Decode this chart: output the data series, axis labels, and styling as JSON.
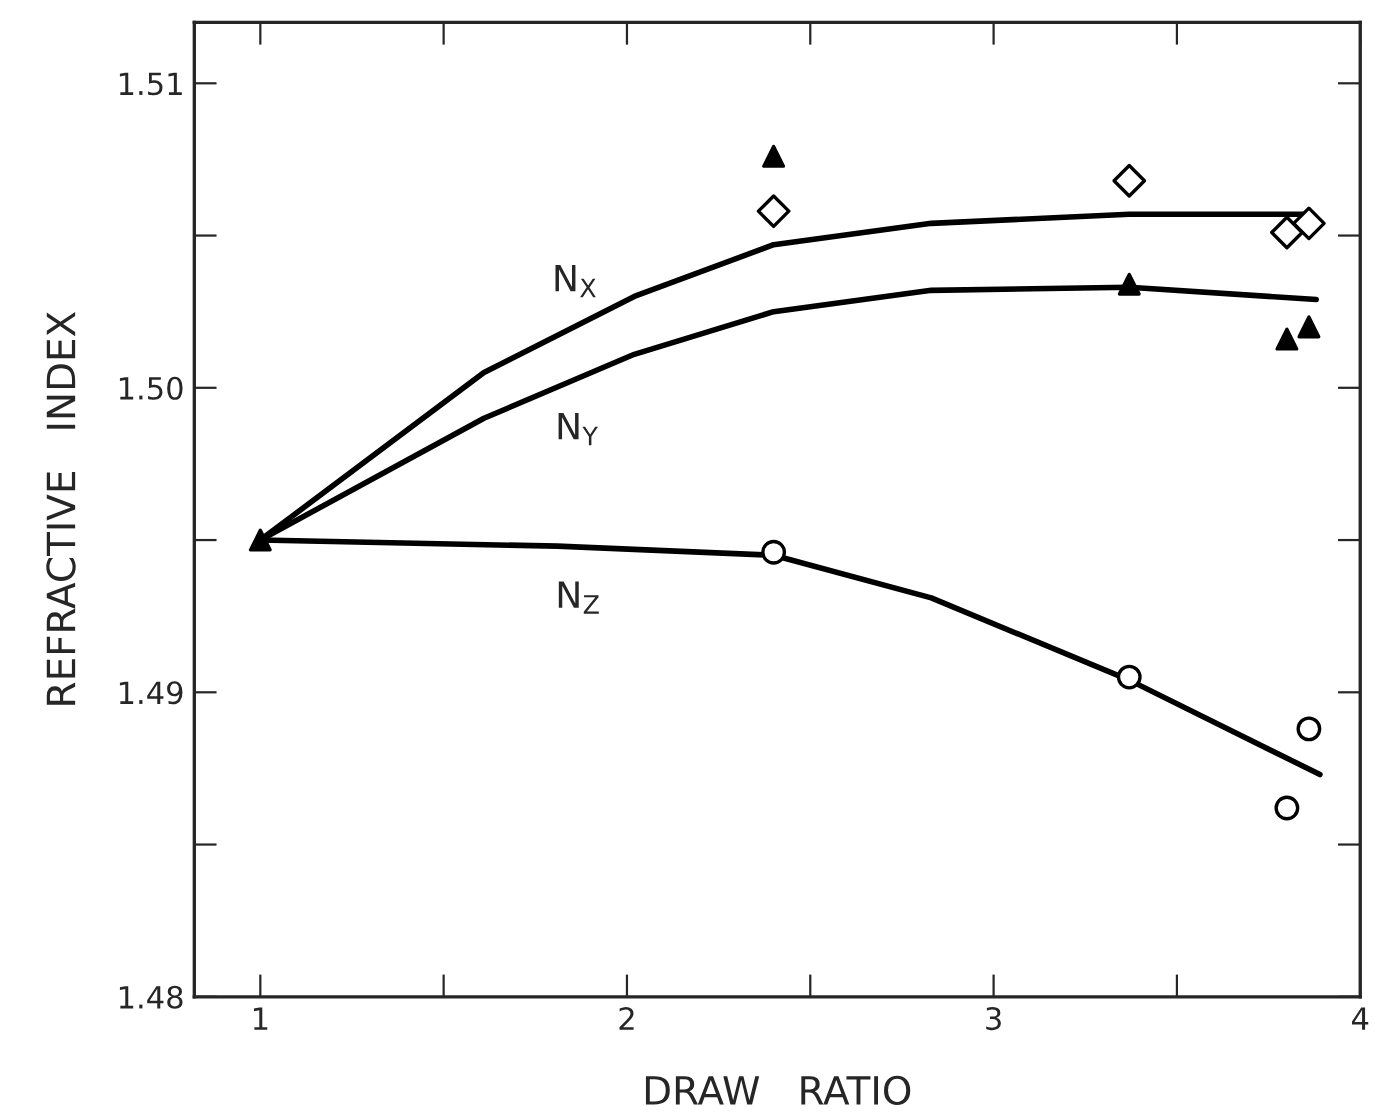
{
  "chart_data": {
    "type": "line",
    "xlabel": "DRAW   RATIO",
    "ylabel": "REFRACTIVE   INDEX",
    "xlim": [
      0.82,
      4.0
    ],
    "ylim": [
      1.48,
      1.512
    ],
    "xticks": [
      1,
      {
        "value": 1.5,
        "label": null
      },
      2,
      {
        "value": 2.5,
        "label": null
      },
      3,
      {
        "value": 3.5,
        "label": null
      },
      4
    ],
    "yticks": [
      {
        "value": 1.48,
        "label": "1.48"
      },
      {
        "value": 1.485,
        "label": null
      },
      {
        "value": 1.49,
        "label": "1.49"
      },
      {
        "value": 1.495,
        "label": null
      },
      {
        "value": 1.5,
        "label": "1.50"
      },
      {
        "value": 1.505,
        "label": null
      },
      {
        "value": 1.51,
        "label": "1.51"
      }
    ],
    "grid": false,
    "legend": false,
    "series": [
      {
        "name": "N$_{X}$",
        "color": "#000000",
        "marker": "none",
        "line_style": "solid",
        "x": [
          1,
          1.61,
          2.02,
          2.4,
          2.83,
          3.37,
          3.86
        ],
        "values": [
          1.495,
          1.5005,
          1.503,
          1.5047,
          1.5054,
          1.5057,
          1.5057
        ]
      },
      {
        "name": "N$_{Y}$",
        "color": "#000000",
        "marker": "none",
        "line_style": "solid",
        "x": [
          1,
          1.61,
          2.02,
          2.4,
          2.83,
          3.37,
          3.88
        ],
        "values": [
          1.495,
          1.499,
          1.5011,
          1.5025,
          1.5032,
          1.5033,
          1.5029
        ]
      },
      {
        "name": "N$_{Z}$",
        "color": "#000000",
        "marker": "none",
        "line_style": "solid",
        "x": [
          1,
          1.81,
          2.4,
          2.83,
          3.37,
          3.89
        ],
        "values": [
          1.495,
          1.4948,
          1.4945,
          1.4931,
          1.4904,
          1.4873
        ]
      },
      {
        "type": "scatter",
        "color": "#ffffff",
        "marker": "diamond",
        "x": [
          2.4,
          3.37,
          3.8,
          3.86
        ],
        "values": [
          1.5058,
          1.5068,
          1.5051,
          1.5054
        ]
      },
      {
        "type": "scatter",
        "color": "#000000",
        "marker": "triangle",
        "x": [
          1,
          2.4,
          3.37,
          3.8,
          3.86
        ],
        "values": [
          1.495,
          1.5076,
          1.5034,
          1.5016,
          1.502
        ]
      },
      {
        "type": "scatter",
        "color": "#ffffff",
        "marker": "circle",
        "x": [
          2.4,
          3.37,
          3.8,
          3.86
        ],
        "values": [
          1.4946,
          1.4905,
          1.4862,
          1.4888
        ]
      }
    ]
  }
}
